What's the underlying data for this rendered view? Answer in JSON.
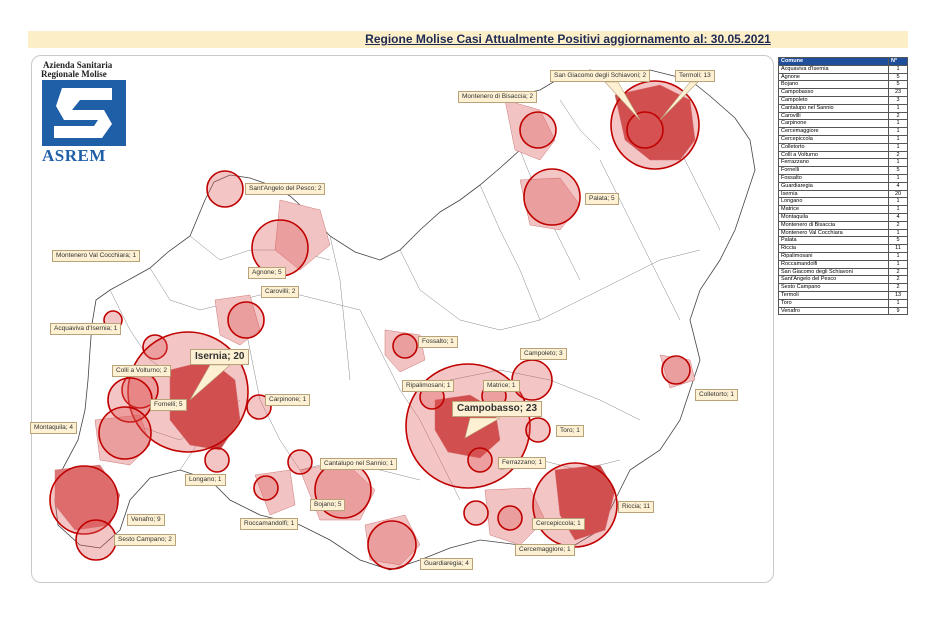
{
  "title": "Regione Molise Casi Attualmente Positivi aggiornamento al: 30.05.2021",
  "logo": {
    "line1": "Azienda Sanitaria",
    "line2": "Regionale Molise",
    "name": "ASREM"
  },
  "table": {
    "headers": [
      "Comune",
      "N°"
    ],
    "rows": [
      [
        "Acquaviva d'Isernia",
        "1"
      ],
      [
        "Agnone",
        "5"
      ],
      [
        "Bojano",
        "5"
      ],
      [
        "Campobasso",
        "23"
      ],
      [
        "Campoleto",
        "3"
      ],
      [
        "Cantalupo nel Sannio",
        "1"
      ],
      [
        "Carovilli",
        "2"
      ],
      [
        "Carpinone",
        "1"
      ],
      [
        "Cercemaggiore",
        "1"
      ],
      [
        "Cercepiccola",
        "1"
      ],
      [
        "Colletorto",
        "1"
      ],
      [
        "Colli a Volturno",
        "2"
      ],
      [
        "Ferrazzano",
        "1"
      ],
      [
        "Fornelli",
        "5"
      ],
      [
        "Fossalto",
        "1"
      ],
      [
        "Guardiaregia",
        "4"
      ],
      [
        "Isernia",
        "20"
      ],
      [
        "Longano",
        "1"
      ],
      [
        "Matrice",
        "1"
      ],
      [
        "Montaquila",
        "4"
      ],
      [
        "Montenero di Bisaccia",
        "2"
      ],
      [
        "Montenero Val Cocchiara",
        "1"
      ],
      [
        "Palata",
        "5"
      ],
      [
        "Riccia",
        "11"
      ],
      [
        "Ripalimosani",
        "1"
      ],
      [
        "Roccamandolfi",
        "1"
      ],
      [
        "San Giacomo degli Schiavoni",
        "2"
      ],
      [
        "Sant'Angelo del Pesco",
        "2"
      ],
      [
        "Sesto Campano",
        "2"
      ],
      [
        "Termoli",
        "13"
      ],
      [
        "Toro",
        "1"
      ],
      [
        "Venafro",
        "9"
      ]
    ]
  },
  "map_labels": [
    {
      "text": "San Giacomo degli Schiavoni; 2"
    },
    {
      "text": "Termoli; 13"
    },
    {
      "text": "Montenero di Bisaccia; 2"
    },
    {
      "text": "Sant'Angelo del Pesco; 2"
    },
    {
      "text": "Palata; 5"
    },
    {
      "text": "Montenero Val Cocchiara; 1"
    },
    {
      "text": "Agnone; 5"
    },
    {
      "text": "Carovilli; 2"
    },
    {
      "text": "Acquaviva d'Isernia; 1"
    },
    {
      "text": "Isernia; 20"
    },
    {
      "text": "Fossalto; 1"
    },
    {
      "text": "Campoleto; 3"
    },
    {
      "text": "Colli a Volturno; 2"
    },
    {
      "text": "Ripalimosani; 1"
    },
    {
      "text": "Matrice; 1"
    },
    {
      "text": "Colletorto; 1"
    },
    {
      "text": "Fornelli; 5"
    },
    {
      "text": "Carpinone; 1"
    },
    {
      "text": "Campobasso; 23"
    },
    {
      "text": "Toro; 1"
    },
    {
      "text": "Montaquila; 4"
    },
    {
      "text": "Ferrazzano; 1"
    },
    {
      "text": "Cantalupo nel Sannio; 1"
    },
    {
      "text": "Longano; 1"
    },
    {
      "text": "Riccia; 11"
    },
    {
      "text": "Bojano; 5"
    },
    {
      "text": "Venafro; 9"
    },
    {
      "text": "Roccamandolfi; 1"
    },
    {
      "text": "Cercepiccola; 1"
    },
    {
      "text": "Sesto Campano; 2"
    },
    {
      "text": "Cercemaggiore; 1"
    },
    {
      "text": "Guardiaregia; 4"
    }
  ],
  "colors": {
    "circle_fill": "#e05a5a",
    "circle_stroke": "#c00000",
    "region_fill": "#f2c3c3",
    "title_bg": "#fcefc8",
    "table_header": "#1f4e9a"
  }
}
